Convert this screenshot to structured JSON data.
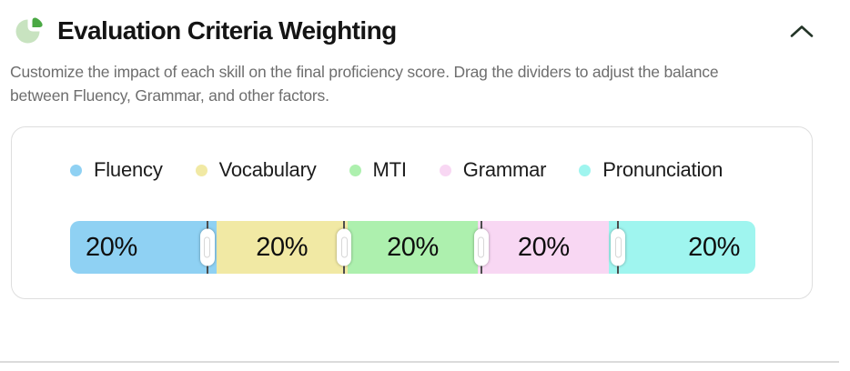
{
  "header": {
    "title": "Evaluation Criteria Weighting",
    "icon_colors": {
      "light": "#c8e3c0",
      "dark": "#4aa844"
    },
    "collapse_icon_color": "#233427"
  },
  "description": "Customize the impact of each skill on the final proficiency score. Drag the dividers to adjust the balance between Fluency, Grammar, and other factors.",
  "weighting": {
    "segments": [
      {
        "label": "Fluency",
        "value": "20%",
        "color": "#8fd1f3"
      },
      {
        "label": "Vocabulary",
        "value": "20%",
        "color": "#f1e9a4"
      },
      {
        "label": "MTI",
        "value": "20%",
        "color": "#adf0ae"
      },
      {
        "label": "Grammar",
        "value": "20%",
        "color": "#f8d7f3"
      },
      {
        "label": "Pronunciation",
        "value": "20%",
        "color": "#9ff5ef"
      }
    ],
    "divider_color": "#4d4d4d"
  }
}
